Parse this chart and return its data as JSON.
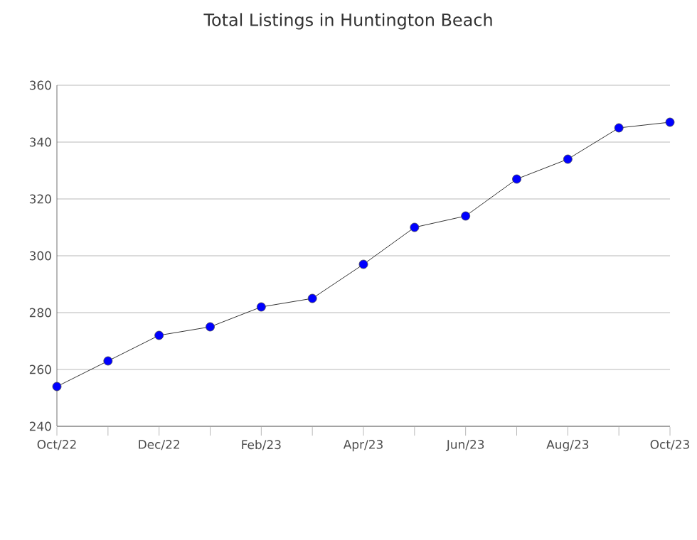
{
  "chart_data": {
    "type": "line",
    "title": "Total Listings in Huntington Beach",
    "categories": [
      "Oct/22",
      null,
      "Dec/22",
      null,
      "Feb/23",
      null,
      "Apr/23",
      null,
      "Jun/23",
      null,
      "Aug/23",
      null,
      "Oct/23"
    ],
    "series": [
      {
        "color": "#0000ff",
        "values": [
          254,
          263,
          272,
          275,
          282,
          285,
          297,
          310,
          314,
          327,
          334,
          345,
          347
        ]
      }
    ],
    "ylim": [
      240,
      360
    ],
    "yticks": [
      240,
      260,
      280,
      300,
      320,
      340,
      360
    ],
    "grid": "y",
    "marker": "circle",
    "line_style": "solid"
  }
}
